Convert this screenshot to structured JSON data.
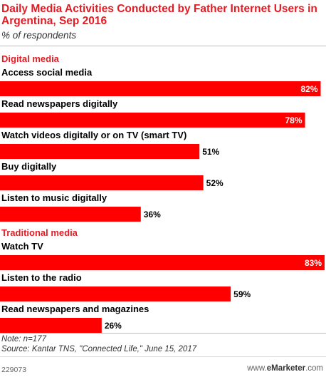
{
  "header": {
    "title": "Daily Media Activities Conducted by Father Internet Users in Argentina, Sep 2016",
    "subtitle": "% of respondents"
  },
  "chart_data": {
    "type": "bar",
    "orientation": "horizontal",
    "unit": "%",
    "xlim": [
      0,
      83
    ],
    "groups": [
      {
        "name": "Digital media",
        "items": [
          {
            "label": "Access social media",
            "value": 82
          },
          {
            "label": "Read newspapers digitally",
            "value": 78
          },
          {
            "label": "Watch videos digitally or on TV (smart TV)",
            "value": 51
          },
          {
            "label": "Buy digitally",
            "value": 52
          },
          {
            "label": "Listen to music digitally",
            "value": 36
          }
        ]
      },
      {
        "name": "Traditional media",
        "items": [
          {
            "label": "Watch TV",
            "value": 83
          },
          {
            "label": "Listen to the radio",
            "value": 59
          },
          {
            "label": "Read newspapers and magazines",
            "value": 26
          }
        ]
      }
    ],
    "colors": {
      "bar": "#ff0000",
      "group_heading": "#e31b23",
      "label_inside": "#ffffff",
      "label_outside": "#000000"
    }
  },
  "footer": {
    "note": "Note: n=177",
    "source": "Source: Kantar TNS, \"Connected Life,\" June 15, 2017",
    "chart_id": "229073",
    "brand_prefix": "www.",
    "brand_name": "eMarketer",
    "brand_suffix": ".com"
  }
}
